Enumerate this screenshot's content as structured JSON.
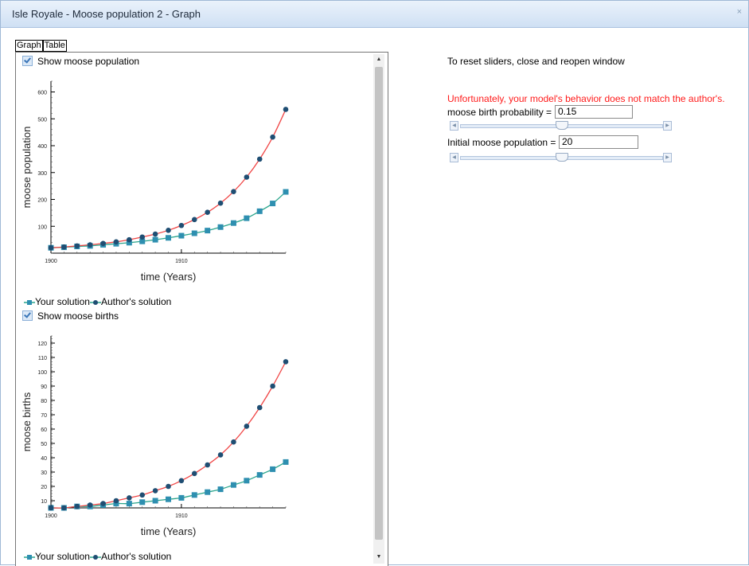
{
  "window": {
    "title": "Isle Royale - Moose population 2 - Graph",
    "close_label": "×"
  },
  "tabs": [
    {
      "label": "Graph"
    },
    {
      "label": "Table"
    }
  ],
  "charts": [
    {
      "checkbox_label": "Show moose population",
      "checked": true
    },
    {
      "checkbox_label": "Show moose births",
      "checked": true
    }
  ],
  "legend": {
    "your": "Your solution",
    "author": "Author's solution"
  },
  "colors": {
    "your_series": "#2aa58c",
    "author_series": "#f04545",
    "marker_your": "#2e8fb0",
    "marker_author": "#1f4e73",
    "warning": "#ff1a1a"
  },
  "controls": {
    "reset_note": "To reset sliders, close and reopen window",
    "warning": "Unfortunately, your model's behavior does not match the author's.",
    "birth_prob_label": "moose birth probability =",
    "birth_prob_value": "0.15",
    "birth_prob_slider": 0.5,
    "init_pop_label": "Initial moose population =",
    "init_pop_value": "20",
    "init_pop_slider": 0.5
  },
  "chart_data": [
    {
      "type": "line",
      "title": "",
      "xlabel": "time (Years)",
      "ylabel": "moose population",
      "xlim": [
        1900,
        1918
      ],
      "ylim": [
        0,
        640
      ],
      "x_ticks": [
        1900,
        1910
      ],
      "y_ticks": [
        100,
        200,
        300,
        400,
        500,
        600
      ],
      "x": [
        1900,
        1901,
        1902,
        1903,
        1904,
        1905,
        1906,
        1907,
        1908,
        1909,
        1910,
        1911,
        1912,
        1913,
        1914,
        1915,
        1916,
        1917,
        1918
      ],
      "series": [
        {
          "name": "Your solution",
          "values": [
            20,
            22,
            25,
            27,
            31,
            35,
            39,
            44,
            50,
            57,
            65,
            74,
            84,
            97,
            112,
            130,
            156,
            185,
            228
          ]
        },
        {
          "name": "Author's solution",
          "values": [
            20,
            23,
            27,
            31,
            36,
            42,
            50,
            60,
            71,
            85,
            103,
            125,
            152,
            186,
            229,
            283,
            350,
            432,
            535
          ]
        }
      ],
      "grid": false,
      "legend": "bottom-left"
    },
    {
      "type": "line",
      "title": "",
      "xlabel": "time (Years)",
      "ylabel": "moose births",
      "xlim": [
        1900,
        1918
      ],
      "ylim": [
        5,
        125
      ],
      "x_ticks": [
        1900,
        1910
      ],
      "y_ticks": [
        10,
        20,
        30,
        40,
        50,
        60,
        70,
        80,
        90,
        100,
        110,
        120
      ],
      "x": [
        1900,
        1901,
        1902,
        1903,
        1904,
        1905,
        1906,
        1907,
        1908,
        1909,
        1910,
        1911,
        1912,
        1913,
        1914,
        1915,
        1916,
        1917,
        1918
      ],
      "series": [
        {
          "name": "Your solution",
          "values": [
            5,
            5,
            6,
            6,
            7,
            8,
            8,
            9,
            10,
            11,
            12,
            14,
            16,
            18,
            21,
            24,
            28,
            32,
            37
          ]
        },
        {
          "name": "Author's solution",
          "values": [
            5,
            5,
            6,
            7,
            8,
            10,
            12,
            14,
            17,
            20,
            24,
            29,
            35,
            42,
            51,
            62,
            75,
            90,
            107
          ]
        }
      ],
      "grid": false,
      "legend": "bottom-left"
    }
  ]
}
